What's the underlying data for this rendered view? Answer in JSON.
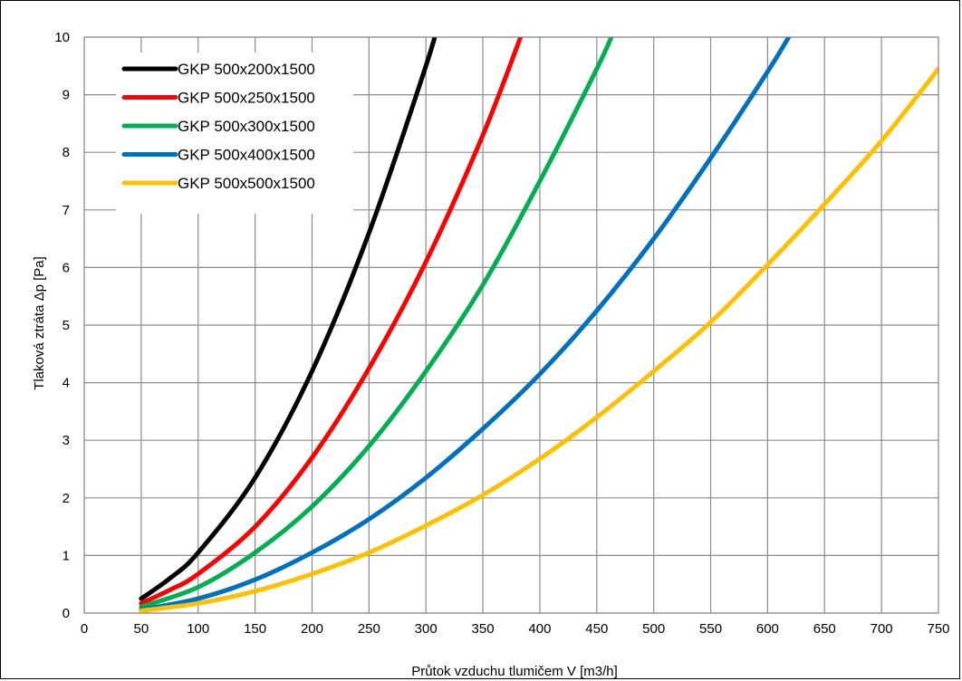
{
  "chart_data": {
    "type": "line",
    "xlabel": "Průtok vzduchu tlumičem V [m3/h]",
    "ylabel": "Tlaková ztráta Δp [Pa]",
    "xlim": [
      0,
      750
    ],
    "ylim": [
      0,
      10
    ],
    "xticks": [
      "0",
      "50",
      "100",
      "150",
      "200",
      "250",
      "300",
      "350",
      "400",
      "450",
      "500",
      "550",
      "600",
      "650",
      "700",
      "750"
    ],
    "yticks": [
      "0",
      "1",
      "2",
      "3",
      "4",
      "5",
      "6",
      "7",
      "8",
      "9",
      "10"
    ],
    "grid": true,
    "legend_position": "top-left",
    "series": [
      {
        "name": "GKP 500x200x1500",
        "color": "#000000",
        "x": [
          50,
          75,
          100,
          150,
          200,
          250,
          300,
          310
        ],
        "y": [
          0.25,
          0.6,
          1.05,
          2.35,
          4.2,
          6.6,
          9.5,
          10.2
        ]
      },
      {
        "name": "GKP 500x250x1500",
        "color": "#ff0000",
        "x": [
          50,
          75,
          100,
          150,
          200,
          250,
          300,
          350,
          385
        ],
        "y": [
          0.17,
          0.4,
          0.68,
          1.5,
          2.7,
          4.25,
          6.1,
          8.3,
          10.1
        ]
      },
      {
        "name": "GKP 500x300x1500",
        "color": "#00b050",
        "x": [
          50,
          100,
          150,
          200,
          250,
          300,
          350,
          400,
          450,
          465
        ],
        "y": [
          0.11,
          0.45,
          1.05,
          1.85,
          2.9,
          4.2,
          5.7,
          7.5,
          9.45,
          10.1
        ]
      },
      {
        "name": "GKP 500x400x1500",
        "color": "#0070c0",
        "x": [
          50,
          100,
          150,
          200,
          250,
          300,
          350,
          400,
          450,
          500,
          550,
          600,
          620
        ],
        "y": [
          0.06,
          0.25,
          0.58,
          1.05,
          1.63,
          2.35,
          3.2,
          4.15,
          5.25,
          6.5,
          7.9,
          9.4,
          10.05
        ]
      },
      {
        "name": "GKP 500x500x1500",
        "color": "#ffc000",
        "x": [
          50,
          100,
          150,
          200,
          250,
          300,
          350,
          400,
          450,
          500,
          550,
          600,
          650,
          700,
          750
        ],
        "y": [
          0.04,
          0.17,
          0.38,
          0.68,
          1.05,
          1.52,
          2.05,
          2.68,
          3.4,
          4.2,
          5.05,
          6.05,
          7.1,
          8.2,
          9.45
        ]
      }
    ]
  }
}
